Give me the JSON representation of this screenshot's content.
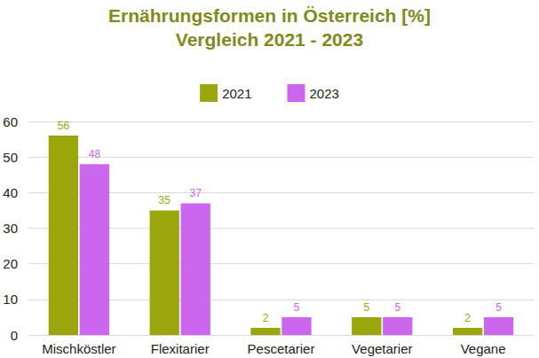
{
  "chart_data": {
    "type": "bar",
    "title": "Ernährungsformen in Österreich [%]",
    "subtitle": "Vergleich 2021 - 2023",
    "categories": [
      "Mischköstler",
      "Flexitarier",
      "Pescetarier",
      "Vegetarier",
      "Vegane"
    ],
    "series": [
      {
        "name": "2021",
        "color": "#9ba60c",
        "values": [
          56,
          35,
          2,
          5,
          2
        ]
      },
      {
        "name": "2023",
        "color": "#cc66ee",
        "values": [
          48,
          37,
          5,
          5,
          5
        ]
      }
    ],
    "ylim": [
      0,
      60
    ],
    "yticks": [
      0,
      10,
      20,
      30,
      40,
      50,
      60
    ],
    "grid": true,
    "legend": "top",
    "data_labels": true
  }
}
